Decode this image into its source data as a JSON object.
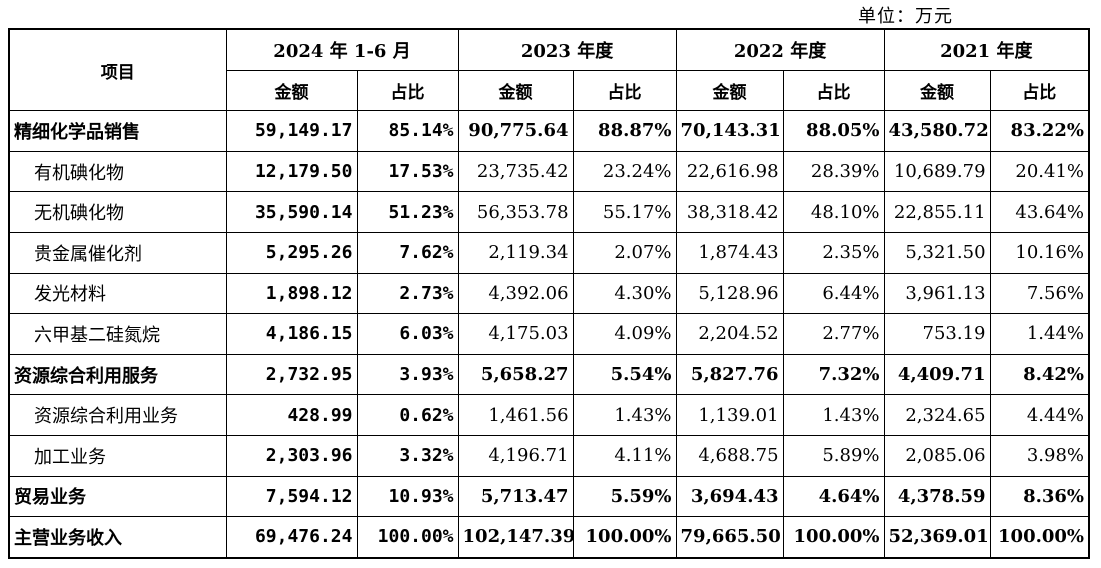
{
  "unit_label": "单位：万元",
  "header": {
    "item": "项目",
    "periods": [
      "2024 年 1-6 月",
      "2023 年度",
      "2022 年度",
      "2021 年度"
    ],
    "amount": "金额",
    "ratio": "占比"
  },
  "rows": [
    {
      "label": "精细化学品销售",
      "bold": true,
      "sub": false,
      "values": [
        "59,149.17",
        "85.14%",
        "90,775.64",
        "88.87%",
        "70,143.31",
        "88.05%",
        "43,580.72",
        "83.22%"
      ]
    },
    {
      "label": "有机碘化物",
      "bold": false,
      "sub": true,
      "values": [
        "12,179.50",
        "17.53%",
        "23,735.42",
        "23.24%",
        "22,616.98",
        "28.39%",
        "10,689.79",
        "20.41%"
      ]
    },
    {
      "label": "无机碘化物",
      "bold": false,
      "sub": true,
      "values": [
        "35,590.14",
        "51.23%",
        "56,353.78",
        "55.17%",
        "38,318.42",
        "48.10%",
        "22,855.11",
        "43.64%"
      ]
    },
    {
      "label": "贵金属催化剂",
      "bold": false,
      "sub": true,
      "values": [
        "5,295.26",
        "7.62%",
        "2,119.34",
        "2.07%",
        "1,874.43",
        "2.35%",
        "5,321.50",
        "10.16%"
      ]
    },
    {
      "label": "发光材料",
      "bold": false,
      "sub": true,
      "values": [
        "1,898.12",
        "2.73%",
        "4,392.06",
        "4.30%",
        "5,128.96",
        "6.44%",
        "3,961.13",
        "7.56%"
      ]
    },
    {
      "label": "六甲基二硅氮烷",
      "bold": false,
      "sub": true,
      "values": [
        "4,186.15",
        "6.03%",
        "4,175.03",
        "4.09%",
        "2,204.52",
        "2.77%",
        "753.19",
        "1.44%"
      ]
    },
    {
      "label": "资源综合利用服务",
      "bold": true,
      "sub": false,
      "values": [
        "2,732.95",
        "3.93%",
        "5,658.27",
        "5.54%",
        "5,827.76",
        "7.32%",
        "4,409.71",
        "8.42%"
      ]
    },
    {
      "label": "资源综合利用业务",
      "bold": false,
      "sub": true,
      "values": [
        "428.99",
        "0.62%",
        "1,461.56",
        "1.43%",
        "1,139.01",
        "1.43%",
        "2,324.65",
        "4.44%"
      ]
    },
    {
      "label": "加工业务",
      "bold": false,
      "sub": true,
      "values": [
        "2,303.96",
        "3.32%",
        "4,196.71",
        "4.11%",
        "4,688.75",
        "5.89%",
        "2,085.06",
        "3.98%"
      ]
    },
    {
      "label": "贸易业务",
      "bold": true,
      "sub": false,
      "values": [
        "7,594.12",
        "10.93%",
        "5,713.47",
        "5.59%",
        "3,694.43",
        "4.64%",
        "4,378.59",
        "8.36%"
      ]
    },
    {
      "label": "主营业务收入",
      "bold": true,
      "sub": false,
      "values": [
        "69,476.24",
        "100.00%",
        "102,147.39",
        "100.00%",
        "79,665.50",
        "100.00%",
        "52,369.01",
        "100.00%"
      ]
    }
  ]
}
